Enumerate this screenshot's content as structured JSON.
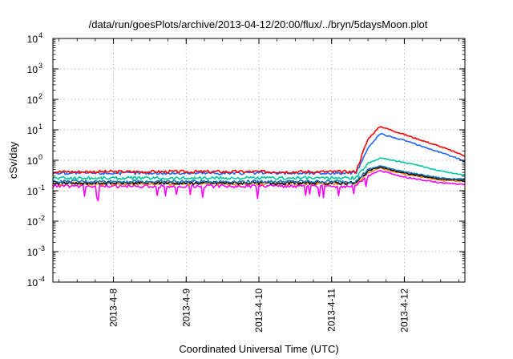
{
  "chart_data": {
    "type": "line",
    "title": "/data/run/goesPlots/archive/2013-04-12/20:00/flux/../bryn/5daysMoon.plot",
    "xlabel": "Coordinated Universal Time (UTC)",
    "ylabel": "cSv/day",
    "yscale": "log",
    "ylim": [
      0.0001,
      10000
    ],
    "yticks": [
      {
        "base": "10",
        "exp": "-4"
      },
      {
        "base": "10",
        "exp": "-3"
      },
      {
        "base": "10",
        "exp": "-2"
      },
      {
        "base": "10",
        "exp": "-1"
      },
      {
        "base": "10",
        "exp": "0"
      },
      {
        "base": "10",
        "exp": "1"
      },
      {
        "base": "10",
        "exp": "2"
      },
      {
        "base": "10",
        "exp": "3"
      },
      {
        "base": "10",
        "exp": "4"
      }
    ],
    "xlim": [
      "2013-04-07 04:00",
      "2013-04-12 20:00"
    ],
    "xticks": [
      {
        "label": "2013-4-8",
        "day": 1
      },
      {
        "label": "2013-4-9",
        "day": 2
      },
      {
        "label": "2013-4-10",
        "day": 3
      },
      {
        "label": "2013-4-11",
        "day": 4
      },
      {
        "label": "2013-4-12",
        "day": 5
      }
    ],
    "grid": true,
    "series": [
      {
        "color": "#ff00ff",
        "x": [
          "2013-04-07 04:00",
          "2013-04-08 00:00",
          "2013-04-09 00:00",
          "2013-04-10 00:00",
          "2013-04-11 00:00",
          "2013-04-11 08:00",
          "2013-04-11 12:00",
          "2013-04-11 16:00",
          "2013-04-12 00:00",
          "2013-04-12 12:00",
          "2013-04-12 20:00"
        ],
        "y": [
          0.14,
          0.14,
          0.14,
          0.14,
          0.14,
          0.14,
          0.3,
          0.45,
          0.28,
          0.18,
          0.16
        ]
      },
      {
        "color": "#ff7f00",
        "x": [
          "2013-04-07 04:00",
          "2013-04-08 00:00",
          "2013-04-09 00:00",
          "2013-04-10 00:00",
          "2013-04-11 00:00",
          "2013-04-11 08:00",
          "2013-04-11 12:00",
          "2013-04-11 16:00",
          "2013-04-12 00:00",
          "2013-04-12 12:00",
          "2013-04-12 20:00"
        ],
        "y": [
          0.17,
          0.17,
          0.17,
          0.17,
          0.17,
          0.17,
          0.4,
          0.55,
          0.35,
          0.22,
          0.2
        ]
      },
      {
        "color": "#000000",
        "x": [
          "2013-04-07 04:00",
          "2013-04-08 00:00",
          "2013-04-09 00:00",
          "2013-04-10 00:00",
          "2013-04-11 00:00",
          "2013-04-11 08:00",
          "2013-04-11 12:00",
          "2013-04-11 16:00",
          "2013-04-12 00:00",
          "2013-04-12 12:00",
          "2013-04-12 20:00"
        ],
        "y": [
          0.18,
          0.18,
          0.18,
          0.18,
          0.18,
          0.18,
          0.45,
          0.6,
          0.38,
          0.24,
          0.22
        ]
      },
      {
        "color": "#1f77b4",
        "x": [
          "2013-04-07 04:00",
          "2013-04-08 00:00",
          "2013-04-09 00:00",
          "2013-04-10 00:00",
          "2013-04-11 00:00",
          "2013-04-11 08:00",
          "2013-04-11 12:00",
          "2013-04-11 16:00",
          "2013-04-12 00:00",
          "2013-04-12 12:00",
          "2013-04-12 20:00"
        ],
        "y": [
          0.2,
          0.2,
          0.2,
          0.2,
          0.2,
          0.2,
          0.5,
          0.65,
          0.42,
          0.26,
          0.24
        ]
      },
      {
        "color": "#00c8a0",
        "x": [
          "2013-04-07 04:00",
          "2013-04-08 00:00",
          "2013-04-09 00:00",
          "2013-04-10 00:00",
          "2013-04-11 00:00",
          "2013-04-11 08:00",
          "2013-04-11 12:00",
          "2013-04-11 16:00",
          "2013-04-12 00:00",
          "2013-04-12 12:00",
          "2013-04-12 20:00"
        ],
        "y": [
          0.26,
          0.26,
          0.26,
          0.26,
          0.26,
          0.26,
          0.8,
          1.2,
          0.85,
          0.45,
          0.32
        ]
      },
      {
        "color": "#1e64ff",
        "x": [
          "2013-04-07 04:00",
          "2013-04-08 00:00",
          "2013-04-09 00:00",
          "2013-04-10 00:00",
          "2013-04-11 00:00",
          "2013-04-11 08:00",
          "2013-04-11 12:00",
          "2013-04-11 16:00",
          "2013-04-12 00:00",
          "2013-04-12 12:00",
          "2013-04-12 20:00"
        ],
        "y": [
          0.38,
          0.38,
          0.38,
          0.38,
          0.38,
          0.38,
          2.5,
          7.5,
          4.5,
          1.8,
          0.95
        ]
      },
      {
        "color": "#ff0000",
        "x": [
          "2013-04-07 04:00",
          "2013-04-08 00:00",
          "2013-04-09 00:00",
          "2013-04-10 00:00",
          "2013-04-11 00:00",
          "2013-04-11 08:00",
          "2013-04-11 12:00",
          "2013-04-11 16:00",
          "2013-04-12 00:00",
          "2013-04-12 12:00",
          "2013-04-12 20:00"
        ],
        "y": [
          0.42,
          0.42,
          0.42,
          0.42,
          0.42,
          0.42,
          5.0,
          13.0,
          7.0,
          2.8,
          1.4
        ]
      }
    ]
  }
}
